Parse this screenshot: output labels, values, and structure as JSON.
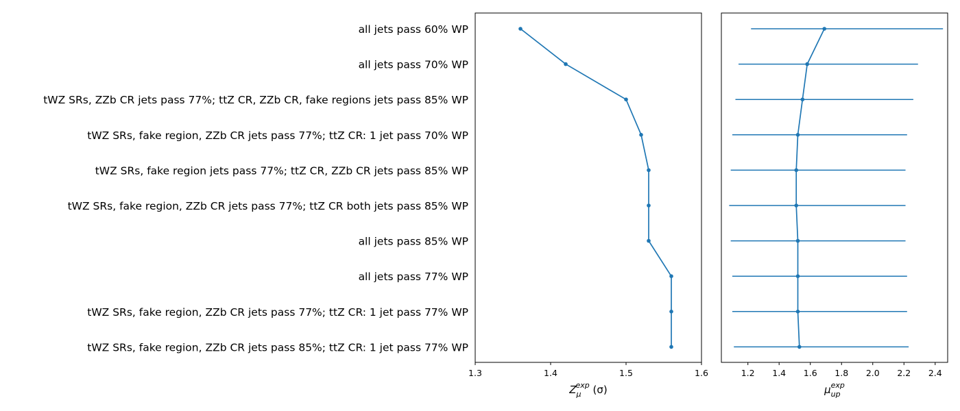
{
  "chart_data": {
    "type": "line",
    "categories": [
      "all jets pass 60% WP",
      "all jets pass 70% WP",
      "tWZ SRs, ZZb CR jets pass 77%; ttZ CR, ZZb CR, fake regions jets pass 85% WP",
      "tWZ SRs, fake region, ZZb CR jets pass 77%; ttZ CR: 1 jet pass 70% WP",
      "tWZ SRs, fake region jets pass 77%; ttZ CR, ZZb CR jets pass 85% WP",
      "tWZ SRs, fake region, ZZb CR jets pass 77%; ttZ CR both jets pass 85% WP",
      "all jets pass 85% WP",
      "all jets pass 77% WP",
      "tWZ SRs, fake region, ZZb CR jets pass 77%; ttZ CR: 1 jet pass 77% WP",
      "tWZ SRs, fake region, ZZb CR jets pass 85%; ttZ CR: 1 jet pass 77% WP"
    ],
    "color": "#1f77b4",
    "panels": [
      {
        "name": "significance",
        "xlabel_main": "Z",
        "xlabel_sub": "μ",
        "xlabel_sup": "exp",
        "xlabel_unit": " (σ)",
        "xlim": [
          1.3,
          1.6
        ],
        "xticks": [
          1.3,
          1.4,
          1.5,
          1.6
        ],
        "xtick_labels": [
          "1.3",
          "1.4",
          "1.5",
          "1.6"
        ],
        "values": [
          1.36,
          1.42,
          1.5,
          1.52,
          1.53,
          1.53,
          1.53,
          1.56,
          1.56,
          1.56
        ]
      },
      {
        "name": "mu_up",
        "xlabel_main": "μ",
        "xlabel_sub": "up",
        "xlabel_sup": "exp",
        "xlabel_unit": "",
        "xlim": [
          1.03,
          2.48
        ],
        "xticks": [
          1.2,
          1.4,
          1.6,
          1.8,
          2.0,
          2.2,
          2.4
        ],
        "xtick_labels": [
          "1.2",
          "1.4",
          "1.6",
          "1.8",
          "2.0",
          "2.2",
          "2.4"
        ],
        "values": [
          1.69,
          1.58,
          1.55,
          1.52,
          1.51,
          1.51,
          1.52,
          1.52,
          1.52,
          1.53
        ],
        "err_low": [
          1.22,
          1.14,
          1.12,
          1.1,
          1.09,
          1.08,
          1.09,
          1.1,
          1.1,
          1.11
        ],
        "err_high": [
          2.45,
          2.29,
          2.26,
          2.22,
          2.21,
          2.21,
          2.21,
          2.22,
          2.22,
          2.23
        ]
      }
    ]
  }
}
